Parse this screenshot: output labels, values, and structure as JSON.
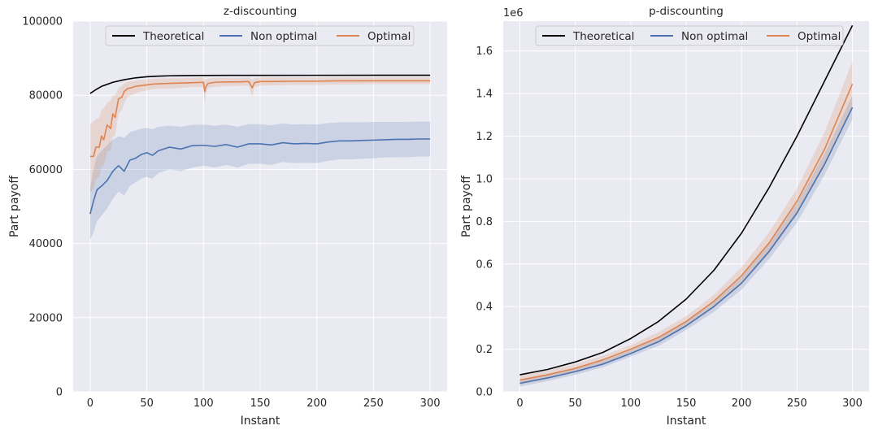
{
  "chart_data": [
    {
      "type": "line",
      "title": "z-discounting",
      "xlabel": "Instant",
      "ylabel": "Part payoff",
      "xlim": [
        -15,
        315
      ],
      "ylim": [
        0,
        100000
      ],
      "xticks": [
        0,
        50,
        100,
        150,
        200,
        250,
        300
      ],
      "yticks": [
        0,
        20000,
        40000,
        60000,
        80000,
        100000
      ],
      "ytick_labels": [
        "0",
        "20000",
        "40000",
        "60000",
        "80000",
        "100000"
      ],
      "offset_label": "",
      "grid": true,
      "legend_position": "top-center",
      "series": [
        {
          "name": "Theoretical",
          "color": "#000000",
          "x": [
            0,
            5,
            10,
            20,
            30,
            40,
            50,
            60,
            70,
            80,
            90,
            100,
            120,
            150,
            200,
            250,
            300
          ],
          "y": [
            80500,
            81500,
            82400,
            83500,
            84200,
            84700,
            85000,
            85150,
            85250,
            85300,
            85330,
            85350,
            85370,
            85380,
            85390,
            85395,
            85400
          ]
        },
        {
          "name": "Non optimal",
          "color": "#4c72b0",
          "x": [
            0,
            3,
            6,
            10,
            15,
            20,
            25,
            30,
            35,
            40,
            45,
            50,
            55,
            60,
            70,
            80,
            90,
            100,
            110,
            120,
            130,
            140,
            150,
            160,
            170,
            180,
            190,
            200,
            210,
            220,
            230,
            240,
            250,
            260,
            270,
            280,
            290,
            300
          ],
          "y": [
            48000,
            51500,
            54500,
            55500,
            57000,
            59500,
            61000,
            59500,
            62500,
            63000,
            64000,
            64500,
            63800,
            65000,
            66000,
            65500,
            66400,
            66500,
            66200,
            66700,
            66000,
            66900,
            66900,
            66600,
            67200,
            66900,
            67000,
            66900,
            67400,
            67700,
            67700,
            67800,
            67900,
            68000,
            68100,
            68100,
            68200,
            68200
          ],
          "band_upper": [
            55000,
            60000,
            63500,
            65000,
            66500,
            68000,
            69000,
            68500,
            70000,
            70500,
            71000,
            71200,
            70800,
            71500,
            71800,
            71500,
            72000,
            72100,
            71800,
            72100,
            71500,
            72200,
            72200,
            71900,
            72400,
            72100,
            72200,
            72100,
            72500,
            72700,
            72700,
            72700,
            72800,
            72800,
            72800,
            72800,
            72900,
            72900
          ],
          "band_lower": [
            41000,
            43000,
            46000,
            47500,
            49500,
            52000,
            54000,
            53000,
            55500,
            56500,
            57500,
            58000,
            57500,
            59000,
            60000,
            59500,
            60500,
            61000,
            60500,
            61200,
            60500,
            61500,
            61500,
            61200,
            62000,
            61700,
            61800,
            61700,
            62300,
            62700,
            62700,
            62900,
            63000,
            63200,
            63300,
            63300,
            63500,
            63500
          ]
        },
        {
          "name": "Optimal",
          "color": "#dd8452",
          "x": [
            0,
            3,
            5,
            8,
            10,
            12,
            15,
            18,
            20,
            22,
            25,
            28,
            30,
            33,
            36,
            40,
            45,
            50,
            55,
            60,
            70,
            80,
            90,
            100,
            101,
            102,
            104,
            110,
            120,
            130,
            140,
            143,
            145,
            150,
            160,
            180,
            200,
            220,
            250,
            280,
            300
          ],
          "y": [
            63500,
            63500,
            66000,
            66000,
            69000,
            68000,
            72000,
            71000,
            75000,
            74000,
            79000,
            79500,
            81000,
            81800,
            82000,
            82400,
            82600,
            82800,
            83000,
            83100,
            83200,
            83300,
            83400,
            83500,
            81000,
            82200,
            83200,
            83500,
            83600,
            83600,
            83700,
            82000,
            83400,
            83700,
            83700,
            83800,
            83800,
            83900,
            83900,
            83900,
            83900
          ],
          "band_upper": [
            72000,
            73000,
            73500,
            74000,
            76000,
            76500,
            78000,
            78500,
            80000,
            80000,
            82000,
            82500,
            83200,
            83600,
            83800,
            84000,
            84200,
            84300,
            84400,
            84500,
            84600,
            84600,
            84700,
            84800,
            84000,
            84300,
            84500,
            84700,
            84700,
            84700,
            84800,
            84200,
            84600,
            84800,
            84800,
            84800,
            84800,
            84800,
            84800,
            84800,
            84800
          ],
          "band_lower": [
            54000,
            54500,
            57500,
            58000,
            61000,
            61000,
            65000,
            65000,
            69000,
            69000,
            75000,
            76000,
            78000,
            79500,
            80000,
            80500,
            81000,
            81300,
            81600,
            81700,
            81800,
            82000,
            82200,
            82200,
            78000,
            80000,
            82000,
            82300,
            82500,
            82500,
            82600,
            79500,
            82200,
            82600,
            82700,
            82800,
            82800,
            82900,
            83000,
            83000,
            83000
          ]
        }
      ]
    },
    {
      "type": "line",
      "title": "p-discounting",
      "xlabel": "Instant",
      "ylabel": "Part payoff",
      "xlim": [
        -15,
        315
      ],
      "ylim": [
        0,
        1.74
      ],
      "xticks": [
        0,
        50,
        100,
        150,
        200,
        250,
        300
      ],
      "yticks": [
        0.0,
        0.2,
        0.4,
        0.6,
        0.8,
        1.0,
        1.2,
        1.4,
        1.6
      ],
      "ytick_labels": [
        "0.0",
        "0.2",
        "0.4",
        "0.6",
        "0.8",
        "1.0",
        "1.2",
        "1.4",
        "1.6"
      ],
      "offset_label": "1e6",
      "grid": true,
      "legend_position": "top-center",
      "series": [
        {
          "name": "Theoretical",
          "color": "#000000",
          "x": [
            0,
            25,
            50,
            75,
            100,
            125,
            150,
            175,
            200,
            225,
            250,
            275,
            300
          ],
          "y": [
            0.08,
            0.105,
            0.14,
            0.185,
            0.25,
            0.33,
            0.435,
            0.57,
            0.745,
            0.96,
            1.2,
            1.46,
            1.72
          ]
        },
        {
          "name": "Non optimal",
          "color": "#4c72b0",
          "x": [
            0,
            25,
            50,
            75,
            100,
            125,
            150,
            175,
            200,
            225,
            250,
            275,
            300
          ],
          "y": [
            0.04,
            0.065,
            0.095,
            0.13,
            0.18,
            0.235,
            0.31,
            0.4,
            0.51,
            0.66,
            0.84,
            1.07,
            1.335
          ],
          "band_upper": [
            0.055,
            0.08,
            0.11,
            0.145,
            0.195,
            0.255,
            0.33,
            0.425,
            0.54,
            0.695,
            0.885,
            1.12,
            1.39
          ],
          "band_lower": [
            0.025,
            0.05,
            0.08,
            0.115,
            0.165,
            0.215,
            0.29,
            0.375,
            0.48,
            0.625,
            0.795,
            1.02,
            1.28
          ]
        },
        {
          "name": "Optimal",
          "color": "#dd8452",
          "x": [
            0,
            25,
            50,
            75,
            100,
            125,
            150,
            175,
            200,
            225,
            250,
            275,
            300
          ],
          "y": [
            0.055,
            0.08,
            0.11,
            0.15,
            0.2,
            0.255,
            0.33,
            0.425,
            0.545,
            0.7,
            0.895,
            1.14,
            1.445
          ],
          "band_upper": [
            0.075,
            0.1,
            0.13,
            0.17,
            0.22,
            0.28,
            0.355,
            0.455,
            0.585,
            0.75,
            0.955,
            1.22,
            1.55
          ],
          "band_lower": [
            0.035,
            0.06,
            0.09,
            0.13,
            0.18,
            0.23,
            0.305,
            0.395,
            0.505,
            0.65,
            0.835,
            1.06,
            1.34
          ]
        }
      ]
    }
  ]
}
